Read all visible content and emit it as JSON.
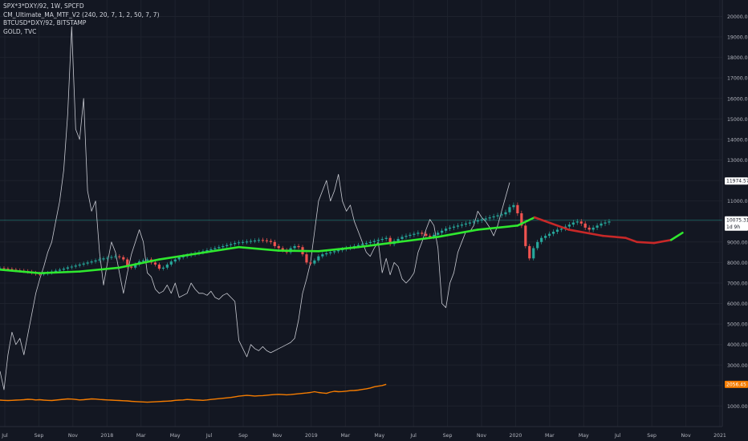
{
  "legend": {
    "line1": "SPX*3*DXY/92, 1W, SPCFD",
    "line2": "CM_Ultimate_MA_MTF_V2 (240, 20, 7, 1, 2, 50, 7, 7)",
    "line3": "BTCUSD*DXY/92, BITSTAMP",
    "line4": "GOLD, TVC"
  },
  "colors": {
    "background": "#131722",
    "grid": "#1e222d",
    "up": "#26a69a",
    "down": "#ef5350",
    "ma_up": "#2fe82f",
    "ma_down": "#c82828",
    "btc": "#c7c9d1",
    "gold": "#f57c00",
    "axis_text": "#b2b5be",
    "badge_last": "#ffffff",
    "badge_gold": "#f57c00"
  },
  "chart_data": {
    "type": "line",
    "x_ticks": [
      "Jul",
      "Sep",
      "Nov",
      "2018",
      "Mar",
      "May",
      "Jul",
      "Sep",
      "Nov",
      "2019",
      "Mar",
      "May",
      "Jul",
      "Sep",
      "Nov",
      "2020",
      "Mar",
      "May",
      "Jul",
      "Sep",
      "Nov",
      "2021"
    ],
    "y_ticks": [
      "20000.00",
      "19000.00",
      "18000.00",
      "17000.00",
      "16000.00",
      "15000.00",
      "14000.00",
      "13000.00",
      "12000.00",
      "11000.00",
      "10000.00",
      "9000.00",
      "8000.00",
      "7000.00",
      "6000.00",
      "5000.00",
      "4000.00",
      "3000.00",
      "2000.00",
      "1000.00"
    ],
    "ylim": [
      0,
      20800
    ],
    "xlim": [
      0,
      1270
    ],
    "candles_spx": {
      "x_start": 0,
      "x_step": 7,
      "closes": [
        7720,
        7700,
        7680,
        7650,
        7620,
        7600,
        7580,
        7550,
        7500,
        7450,
        7430,
        7460,
        7500,
        7560,
        7600,
        7650,
        7700,
        7760,
        7800,
        7850,
        7900,
        7950,
        8000,
        8050,
        8100,
        8150,
        8200,
        8230,
        8270,
        8300,
        8260,
        8150,
        7800,
        7750,
        7900,
        8050,
        8100,
        8150,
        8000,
        7900,
        7700,
        7750,
        7900,
        8050,
        8150,
        8250,
        8300,
        8350,
        8400,
        8450,
        8500,
        8550,
        8600,
        8650,
        8700,
        8750,
        8800,
        8850,
        8900,
        8950,
        8980,
        9000,
        9020,
        9050,
        9070,
        9100,
        9080,
        9050,
        9000,
        8800,
        8700,
        8600,
        8500,
        8700,
        8800,
        8750,
        8400,
        8000,
        7950,
        8100,
        8300,
        8400,
        8450,
        8500,
        8550,
        8600,
        8650,
        8700,
        8750,
        8800,
        8850,
        8900,
        8950,
        9000,
        9050,
        9100,
        9150,
        9200,
        8900,
        9050,
        9150,
        9250,
        9300,
        9350,
        9400,
        9450,
        9400,
        9300,
        9250,
        9350,
        9450,
        9550,
        9650,
        9700,
        9750,
        9800,
        9850,
        9900,
        9950,
        10000,
        10050,
        10100,
        10150,
        10200,
        10250,
        10300,
        10350,
        10450,
        10700,
        10800,
        10400,
        9800,
        8800,
        8200,
        8700,
        9000,
        9200,
        9300,
        9400,
        9500,
        9600,
        9650,
        9750,
        9850,
        9950,
        10000,
        9900,
        9700,
        9600,
        9700,
        9800,
        9900,
        9950,
        10000
      ]
    },
    "btc_line": {
      "x_start": 0,
      "x_step": 7,
      "values": [
        2700,
        1800,
        3500,
        4600,
        4000,
        4300,
        3500,
        4500,
        5500,
        6500,
        7200,
        7800,
        8500,
        9000,
        10000,
        11000,
        12500,
        15200,
        19500,
        14500,
        14000,
        16000,
        11500,
        10500,
        11000,
        8500,
        6900,
        8000,
        9000,
        8500,
        7500,
        6500,
        7500,
        8400,
        9000,
        9600,
        9000,
        7500,
        7300,
        6700,
        6500,
        6600,
        6900,
        6500,
        7000,
        6300,
        6400,
        6500,
        7000,
        6700,
        6500,
        6500,
        6400,
        6600,
        6300,
        6200,
        6400,
        6500,
        6300,
        6100,
        4200,
        3800,
        3400,
        4000,
        3800,
        3700,
        3900,
        3700,
        3600,
        3700,
        3800,
        3900,
        4000,
        4100,
        4300,
        5200,
        6500,
        7200,
        8000,
        9500,
        11000,
        11500,
        12000,
        11000,
        11500,
        12300,
        11000,
        10500,
        10800,
        10000,
        9500,
        9000,
        8500,
        8300,
        8700,
        9000,
        7500,
        8200,
        7400,
        8000,
        7800,
        7200,
        7000,
        7200,
        7500,
        8500,
        9000,
        9600,
        10100,
        9800,
        8700,
        6000,
        5800,
        7000,
        7500,
        8500,
        9000,
        9500,
        9500,
        9800,
        10500,
        10200,
        10000,
        9700,
        9300,
        9800,
        10500,
        11200,
        11900
      ]
    },
    "gold_line": {
      "x_start": 0,
      "x_step": 7,
      "values": [
        1290,
        1280,
        1270,
        1280,
        1290,
        1300,
        1310,
        1330,
        1320,
        1300,
        1310,
        1290,
        1280,
        1270,
        1290,
        1310,
        1330,
        1350,
        1340,
        1320,
        1300,
        1310,
        1330,
        1350,
        1340,
        1320,
        1310,
        1300,
        1290,
        1280,
        1270,
        1260,
        1250,
        1230,
        1220,
        1210,
        1200,
        1190,
        1200,
        1210,
        1220,
        1230,
        1240,
        1250,
        1280,
        1290,
        1300,
        1320,
        1310,
        1300,
        1290,
        1280,
        1300,
        1320,
        1340,
        1360,
        1380,
        1400,
        1420,
        1450,
        1480,
        1500,
        1520,
        1510,
        1490,
        1500,
        1510,
        1530,
        1550,
        1560,
        1570,
        1560,
        1550,
        1560,
        1580,
        1600,
        1620,
        1640,
        1660,
        1700,
        1660,
        1640,
        1620,
        1680,
        1720,
        1700,
        1710,
        1730,
        1750,
        1760,
        1780,
        1810,
        1840,
        1880,
        1940,
        1970,
        2000,
        2060
      ]
    },
    "ma_line": {
      "x": [
        0,
        70,
        140,
        210,
        280,
        350,
        420,
        490,
        560,
        630,
        700,
        770,
        840,
        910,
        940,
        1000,
        1060,
        1100,
        1120,
        1150,
        1180,
        1200
      ],
      "values": [
        7650,
        7480,
        7560,
        7750,
        8150,
        8450,
        8750,
        8580,
        8550,
        8750,
        9000,
        9250,
        9600,
        9800,
        10200,
        9600,
        9300,
        9200,
        9000,
        8950,
        9100,
        9450
      ],
      "direction": [
        "up",
        "up",
        "up",
        "up",
        "up",
        "up",
        "up",
        "up",
        "up",
        "up",
        "up",
        "up",
        "up",
        "up",
        "down",
        "down",
        "down",
        "down",
        "down",
        "down",
        "up",
        "up"
      ]
    },
    "last_values": {
      "btc": "11974.57",
      "spx": "10075.31",
      "spx_timer": "1d 9h",
      "gold": "2056.45"
    }
  }
}
